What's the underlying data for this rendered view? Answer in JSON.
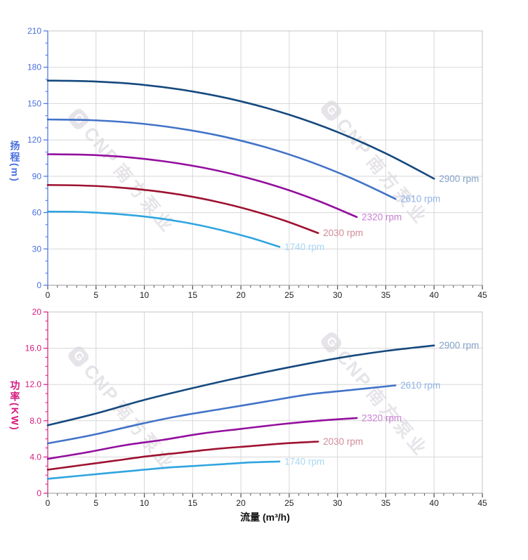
{
  "watermark": {
    "logo_letter": "G",
    "brand": "CNP",
    "brand_cn": "南方泵业"
  },
  "chart_data": [
    {
      "type": "line",
      "name": "head-curve-chart",
      "xlabel": "",
      "ylabel": "扬程(m)",
      "xlim": [
        0,
        45
      ],
      "ylim": [
        0,
        210
      ],
      "grid": true,
      "legend_position": "end-of-line",
      "x_major_ticks": [
        0,
        5,
        10,
        15,
        20,
        25,
        30,
        35,
        40,
        45
      ],
      "x_tick_labels": [
        "0",
        "5",
        "10",
        "15",
        "20",
        "25",
        "30",
        "35",
        "40",
        "45"
      ],
      "x_minor_step": 1,
      "y_major_ticks": [
        0,
        30,
        60,
        90,
        120,
        150,
        180,
        210
      ],
      "y_tick_labels": [
        "0",
        "30",
        "60",
        "90",
        "120",
        "150",
        "180",
        "210"
      ],
      "y_minor_step": 10,
      "axis_color": "#4a6fdf",
      "series": [
        {
          "name": "2900 rpm",
          "color": "#15497e",
          "label_color": "#82a0c8",
          "x": [
            0,
            5,
            10,
            15,
            20,
            25,
            30,
            35,
            40
          ],
          "y": [
            169,
            168.2,
            165.4,
            160,
            151.9,
            140.8,
            126.5,
            108.9,
            88
          ]
        },
        {
          "name": "2610 rpm",
          "color": "#4273c8",
          "label_color": "#8fb2e8",
          "x": [
            0,
            4.5,
            9,
            13.5,
            18,
            22.5,
            27,
            31.5,
            36
          ],
          "y": [
            136.9,
            136.3,
            134,
            129.6,
            123.1,
            114.1,
            102.5,
            88.2,
            71.3
          ]
        },
        {
          "name": "2320 rpm",
          "color": "#930f9e",
          "label_color": "#c77fd2",
          "x": [
            0,
            4,
            8,
            12,
            16,
            20,
            24,
            28,
            32
          ],
          "y": [
            108.2,
            107.7,
            105.9,
            102.4,
            97.2,
            90.1,
            81,
            69.7,
            56.3
          ]
        },
        {
          "name": "2030 rpm",
          "color": "#9e1230",
          "label_color": "#d08b99",
          "x": [
            0,
            3.5,
            7,
            10.5,
            14,
            17.5,
            21,
            24.5,
            28
          ],
          "y": [
            82.8,
            82.4,
            81,
            78.4,
            74.4,
            69,
            62,
            53.4,
            43.1
          ]
        },
        {
          "name": "1740 rpm",
          "color": "#30a5e0",
          "label_color": "#a6d7f2",
          "x": [
            0,
            3,
            6,
            9,
            12,
            15,
            18,
            21,
            24
          ],
          "y": [
            60.8,
            60.6,
            59.5,
            57.6,
            54.7,
            50.7,
            45.5,
            39.2,
            31.7
          ]
        }
      ]
    },
    {
      "type": "line",
      "name": "power-curve-chart",
      "xlabel": "流量 (m³/h)",
      "ylabel": "功率(KW)",
      "xlim": [
        0,
        45
      ],
      "ylim": [
        0,
        20
      ],
      "grid": true,
      "legend_position": "end-of-line",
      "x_major_ticks": [
        0,
        5,
        10,
        15,
        20,
        25,
        30,
        35,
        40,
        45
      ],
      "x_tick_labels": [
        "0",
        "5",
        "10",
        "15",
        "20",
        "25",
        "30",
        "35",
        "40",
        "45"
      ],
      "x_minor_step": 1,
      "y_major_ticks": [
        0,
        4,
        8,
        12,
        16,
        20
      ],
      "y_tick_labels": [
        "0",
        "4.0",
        "8.0",
        "12.0",
        "16.0",
        "20"
      ],
      "y_minor_step": 1,
      "axis_color": "#d61a7f",
      "series": [
        {
          "name": "2900 rpm",
          "color": "#15497e",
          "label_color": "#82a0c8",
          "x": [
            0,
            5,
            10,
            15,
            20,
            25,
            30,
            35,
            40
          ],
          "y": [
            7.5,
            8.8,
            10.3,
            11.6,
            12.8,
            13.9,
            14.9,
            15.7,
            16.3
          ]
        },
        {
          "name": "2610 rpm",
          "color": "#4273c8",
          "label_color": "#8fb2e8",
          "x": [
            0,
            4.5,
            9,
            13.5,
            18,
            22.5,
            27,
            31.5,
            36
          ],
          "y": [
            5.5,
            6.4,
            7.5,
            8.5,
            9.3,
            10.1,
            10.9,
            11.4,
            11.9
          ]
        },
        {
          "name": "2320 rpm",
          "color": "#930f9e",
          "label_color": "#c77fd2",
          "x": [
            0,
            4,
            8,
            12,
            16,
            20,
            24,
            28,
            32
          ],
          "y": [
            3.8,
            4.5,
            5.3,
            5.9,
            6.6,
            7.1,
            7.6,
            8,
            8.3
          ]
        },
        {
          "name": "2030 rpm",
          "color": "#9e1230",
          "label_color": "#d08b99",
          "x": [
            0,
            3.5,
            7,
            10.5,
            14,
            17.5,
            21,
            24.5,
            28
          ],
          "y": [
            2.6,
            3.1,
            3.6,
            4.1,
            4.5,
            4.9,
            5.2,
            5.5,
            5.7
          ]
        },
        {
          "name": "1740 rpm",
          "color": "#30a5e0",
          "label_color": "#a6d7f2",
          "x": [
            0,
            3,
            6,
            9,
            12,
            15,
            18,
            21,
            24
          ],
          "y": [
            1.6,
            1.9,
            2.2,
            2.5,
            2.8,
            3,
            3.2,
            3.4,
            3.5
          ]
        }
      ]
    }
  ]
}
